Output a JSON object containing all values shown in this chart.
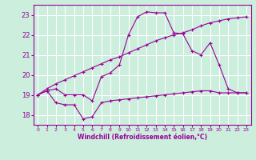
{
  "xlabel": "Windchill (Refroidissement éolien,°C)",
  "background_color": "#cceedd",
  "grid_color": "#ffffff",
  "line_color": "#990099",
  "xlim": [
    -0.5,
    23.5
  ],
  "ylim": [
    17.5,
    23.5
  ],
  "yticks": [
    18,
    19,
    20,
    21,
    22,
    23
  ],
  "xticks": [
    0,
    1,
    2,
    3,
    4,
    5,
    6,
    7,
    8,
    9,
    10,
    11,
    12,
    13,
    14,
    15,
    16,
    17,
    18,
    19,
    20,
    21,
    22,
    23
  ],
  "series1_x": [
    0,
    1,
    2,
    3,
    4,
    5,
    6,
    7,
    8,
    9,
    10,
    11,
    12,
    13,
    14,
    15,
    16,
    17,
    18,
    19,
    20,
    21,
    22,
    23
  ],
  "series1_y": [
    19.0,
    19.2,
    18.6,
    18.5,
    18.5,
    17.8,
    17.9,
    18.6,
    18.7,
    18.75,
    18.8,
    18.85,
    18.9,
    18.95,
    19.0,
    19.05,
    19.1,
    19.15,
    19.2,
    19.2,
    19.1,
    19.1,
    19.1,
    19.1
  ],
  "series2_x": [
    0,
    1,
    2,
    3,
    4,
    5,
    6,
    7,
    8,
    9,
    10,
    11,
    12,
    13,
    14,
    15,
    16,
    17,
    18,
    19,
    20,
    21,
    22,
    23
  ],
  "series2_y": [
    19.0,
    19.2,
    19.3,
    19.0,
    19.0,
    19.0,
    18.7,
    19.9,
    20.1,
    20.5,
    22.0,
    22.9,
    23.15,
    23.1,
    23.1,
    22.1,
    22.05,
    21.2,
    21.0,
    21.6,
    20.5,
    19.3,
    19.1,
    19.1
  ],
  "series3_x": [
    0,
    1,
    2,
    3,
    4,
    5,
    6,
    7,
    8,
    9,
    10,
    11,
    12,
    13,
    14,
    15,
    16,
    17,
    18,
    19,
    20,
    21,
    22,
    23
  ],
  "series3_y": [
    19.0,
    19.3,
    19.55,
    19.75,
    19.95,
    20.15,
    20.35,
    20.55,
    20.75,
    20.9,
    21.1,
    21.3,
    21.5,
    21.7,
    21.85,
    22.0,
    22.1,
    22.25,
    22.45,
    22.6,
    22.7,
    22.8,
    22.85,
    22.9
  ]
}
